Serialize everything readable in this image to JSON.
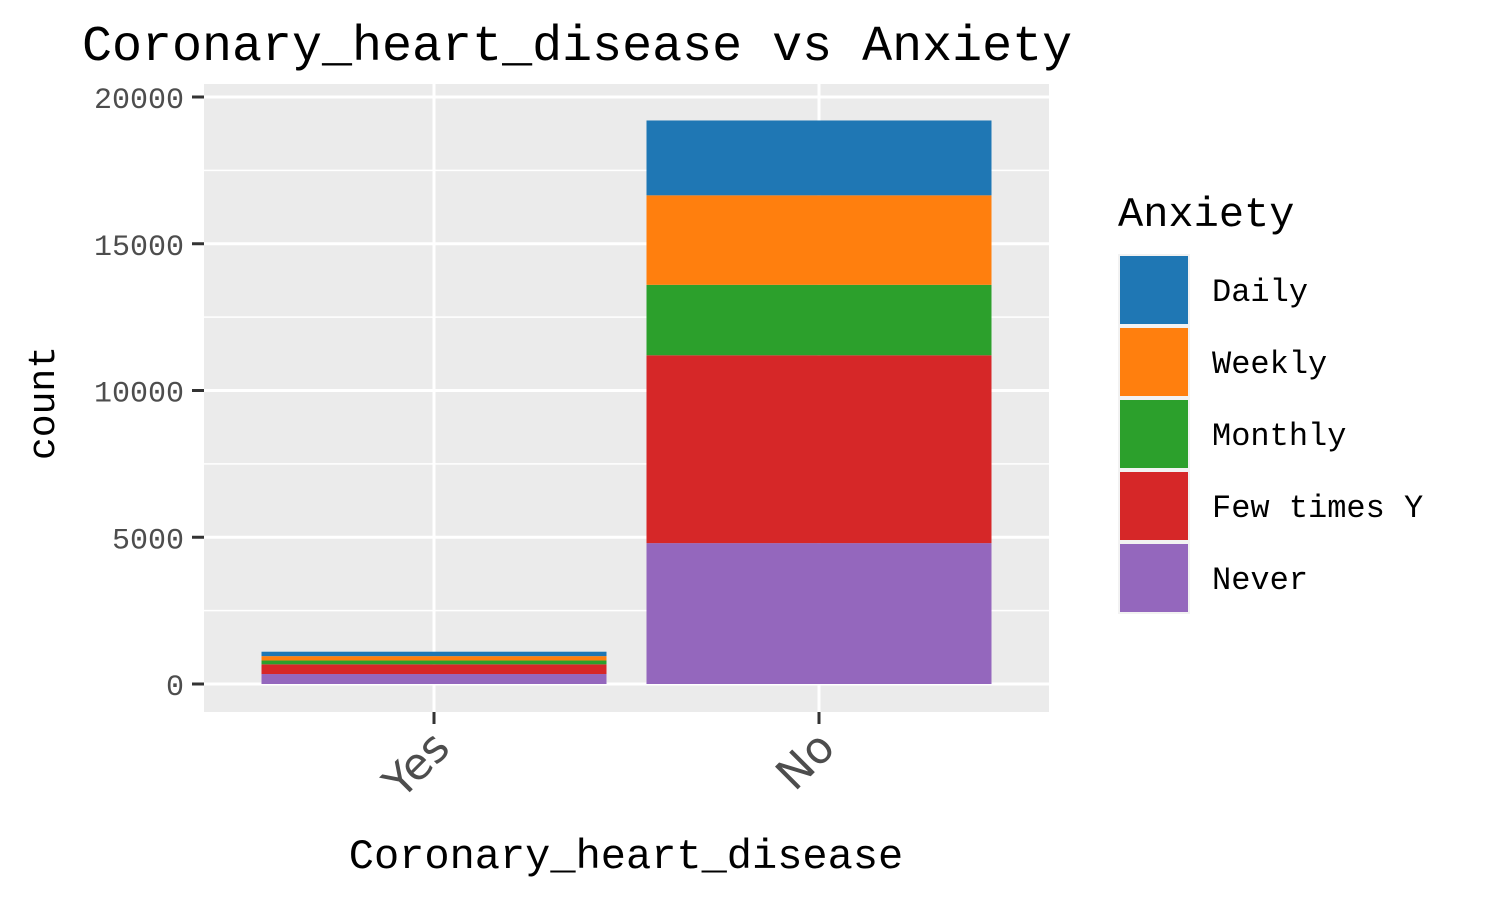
{
  "chart_data": {
    "type": "bar",
    "stacked": true,
    "title": "Coronary_heart_disease vs Anxiety",
    "xlabel": "Coronary_heart_disease",
    "ylabel": "count",
    "categories": [
      "Yes",
      "No"
    ],
    "ylim": [
      0,
      21000
    ],
    "yticks": [
      0,
      5000,
      10000,
      15000,
      20000
    ],
    "yticklabels": [
      "0",
      "5000",
      "10000",
      "15000",
      "20000"
    ],
    "legend": {
      "title": "Anxiety",
      "position": "right"
    },
    "series": [
      {
        "name": "Daily",
        "color": "#1f77b4",
        "values": [
          150,
          2550
        ]
      },
      {
        "name": "Weekly",
        "color": "#ff7f0e",
        "values": [
          150,
          3050
        ]
      },
      {
        "name": "Monthly",
        "color": "#2ca02c",
        "values": [
          130,
          2400
        ]
      },
      {
        "name": "Few times Y",
        "color": "#d62728",
        "values": [
          330,
          6400
        ]
      },
      {
        "name": "Never",
        "color": "#9467bd",
        "values": [
          340,
          4800
        ]
      }
    ],
    "grid": true,
    "panel_background": "#ebebeb"
  }
}
